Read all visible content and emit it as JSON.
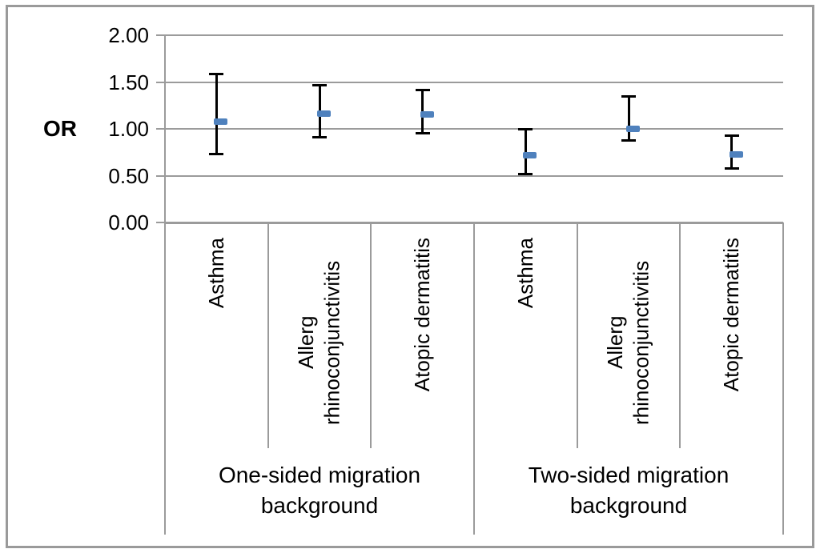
{
  "figure": {
    "background": "#ffffff",
    "border_color": "#9a9a9a"
  },
  "chart_data": {
    "type": "scatter",
    "subtype": "odds-ratio-points-with-95ci-error-bars",
    "title": "",
    "xlabel": "",
    "ylabel": "OR",
    "ylim": [
      0,
      2
    ],
    "grid": true,
    "legend": false,
    "yticks": [
      {
        "label": "0.00",
        "value": 0
      },
      {
        "label": "0.50",
        "value": 0.5
      },
      {
        "label": "1.00",
        "value": 1
      },
      {
        "label": "1.50",
        "value": 1.5
      },
      {
        "label": "2.00",
        "value": 2
      }
    ],
    "groups": [
      {
        "label": "One-sided migration background",
        "points": [
          {
            "category": "Asthma",
            "or": 1.08,
            "ci_low": 0.73,
            "ci_high": 1.59
          },
          {
            "category": "Allerg rhinoconjunctivitis",
            "or": 1.16,
            "ci_low": 0.91,
            "ci_high": 1.47
          },
          {
            "category": "Atopic dermatitis",
            "or": 1.15,
            "ci_low": 0.95,
            "ci_high": 1.42
          }
        ]
      },
      {
        "label": "Two-sided migration background",
        "points": [
          {
            "category": "Asthma",
            "or": 0.72,
            "ci_low": 0.51,
            "ci_high": 1.0
          },
          {
            "category": "Allerg rhinoconjunctivitis",
            "or": 1.0,
            "ci_low": 0.87,
            "ci_high": 1.35
          },
          {
            "category": "Atopic dermatitis",
            "or": 0.73,
            "ci_low": 0.57,
            "ci_high": 0.93
          }
        ]
      }
    ],
    "colors": {
      "marker": "#4F81BD",
      "error_bar": "#000000",
      "gridline": "#9b9b9b",
      "text": "#000000"
    }
  }
}
